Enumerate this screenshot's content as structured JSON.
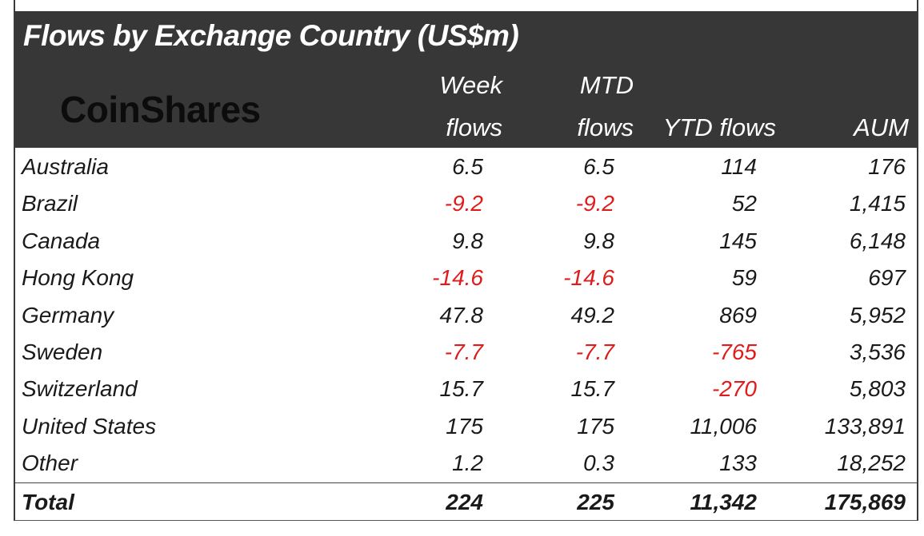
{
  "title": "Flows by Exchange Country (US$m)",
  "logo_text": "CoinShares",
  "columns": {
    "week_line1": "Week",
    "week_line2": "flows",
    "mtd_line1": "MTD",
    "mtd_line2": "flows",
    "ytd": "YTD flows",
    "aum": "AUM"
  },
  "rows": [
    {
      "country": "Australia",
      "week": "6.5",
      "mtd": "6.5",
      "ytd": "114",
      "aum": "176"
    },
    {
      "country": "Brazil",
      "week": "-9.2",
      "mtd": "-9.2",
      "ytd": "52",
      "aum": "1,415"
    },
    {
      "country": "Canada",
      "week": "9.8",
      "mtd": "9.8",
      "ytd": "145",
      "aum": "6,148"
    },
    {
      "country": "Hong Kong",
      "week": "-14.6",
      "mtd": "-14.6",
      "ytd": "59",
      "aum": "697"
    },
    {
      "country": "Germany",
      "week": "47.8",
      "mtd": "49.2",
      "ytd": "869",
      "aum": "5,952"
    },
    {
      "country": "Sweden",
      "week": "-7.7",
      "mtd": "-7.7",
      "ytd": "-765",
      "aum": "3,536"
    },
    {
      "country": "Switzerland",
      "week": "15.7",
      "mtd": "15.7",
      "ytd": "-270",
      "aum": "5,803"
    },
    {
      "country": "United States",
      "week": "175",
      "mtd": "175",
      "ytd": "11,006",
      "aum": "133,891"
    },
    {
      "country": "Other",
      "week": "1.2",
      "mtd": "0.3",
      "ytd": "133",
      "aum": "18,252"
    }
  ],
  "total": {
    "label": "Total",
    "week": "224",
    "mtd": "225",
    "ytd": "11,342",
    "aum": "175,869"
  },
  "colors": {
    "header_bg": "#373737",
    "negative": "#e01b1b",
    "text": "#1a1a1a"
  }
}
